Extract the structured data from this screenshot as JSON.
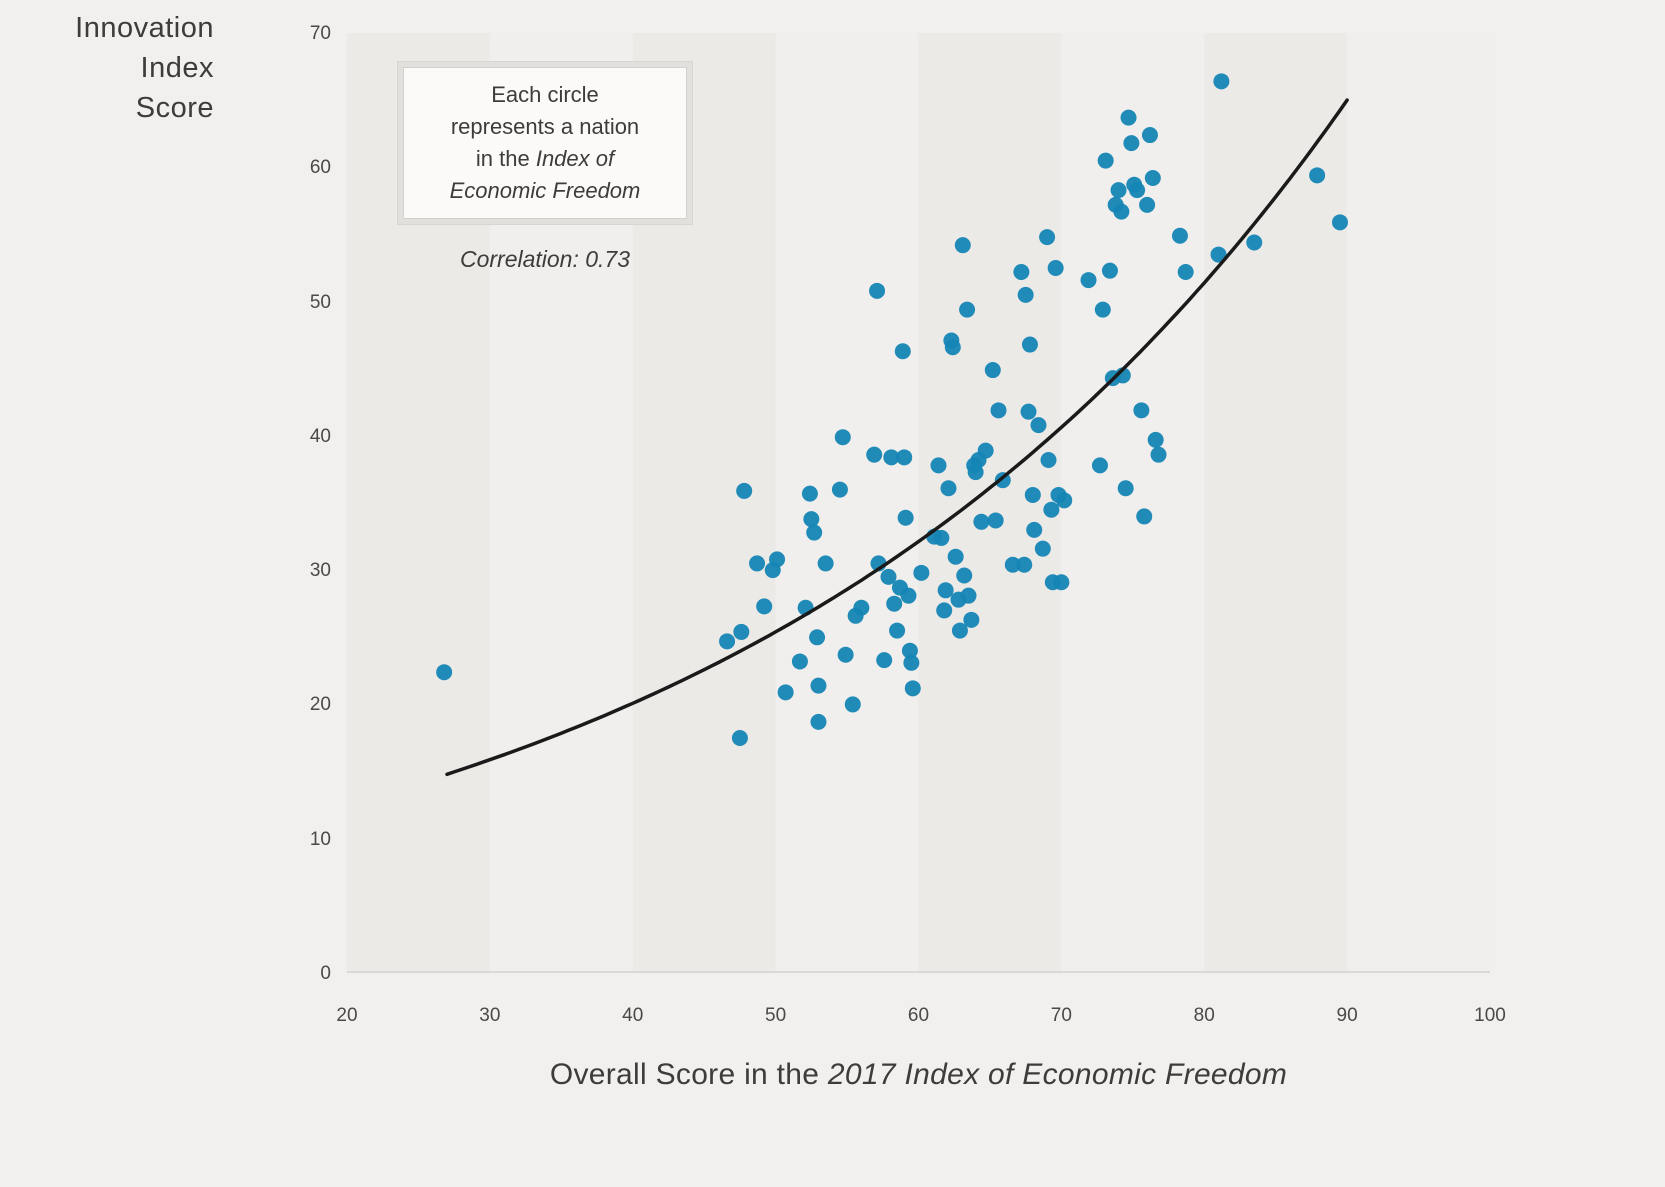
{
  "style": {
    "background": "#f2f0ee",
    "band_colors": [
      "#eceae7",
      "#f1efed"
    ],
    "point_color": "#1585b5",
    "trend_color": "#1a1a1a",
    "axis_line_color": "#dbd9d6",
    "text_color": "#3d3c3a"
  },
  "y_axis": {
    "title_lines": [
      "Innovation",
      "Index",
      "Score"
    ],
    "ticks": [
      0,
      10,
      20,
      30,
      40,
      50,
      60,
      70
    ]
  },
  "x_axis": {
    "title_prefix": "Overall Score in the ",
    "title_italic": "2017 Index of Economic Freedom",
    "ticks": [
      20,
      30,
      40,
      50,
      60,
      70,
      80,
      90,
      100
    ]
  },
  "annotation": {
    "box_lines": [
      {
        "text": "Each circle"
      },
      {
        "text": "represents a nation"
      },
      {
        "prefix": "in the ",
        "italic": "Index of"
      },
      {
        "italic": "Economic Freedom"
      }
    ],
    "correlation": "Correlation: 0.73"
  },
  "chart_data": {
    "type": "scatter",
    "title": "",
    "xlabel": "Overall Score in the 2017 Index of Economic Freedom",
    "ylabel": "Innovation Index Score",
    "xlim": [
      20,
      100
    ],
    "ylim": [
      0,
      70
    ],
    "x_ticks": [
      20,
      30,
      40,
      50,
      60,
      70,
      80,
      90,
      100
    ],
    "y_ticks": [
      0,
      10,
      20,
      30,
      40,
      50,
      60,
      70
    ],
    "grid": "vertical shaded bands every 10 x-units, no horizontal gridlines",
    "legend_position": "none",
    "annotation_text": "Each circle represents a nation in the Index of Economic Freedom",
    "correlation": 0.73,
    "trend": {
      "form": "exponential",
      "x_start": 27,
      "x_end": 90,
      "y_start": 14.8,
      "y_end": 65
    },
    "points": [
      [
        26.8,
        22.4
      ],
      [
        46.6,
        24.7
      ],
      [
        47.5,
        17.5
      ],
      [
        47.8,
        35.9
      ],
      [
        47.6,
        25.4
      ],
      [
        48.7,
        30.5
      ],
      [
        49.2,
        27.3
      ],
      [
        49.8,
        30.0
      ],
      [
        50.1,
        30.8
      ],
      [
        50.7,
        20.9
      ],
      [
        51.7,
        23.2
      ],
      [
        52.1,
        27.2
      ],
      [
        52.4,
        35.7
      ],
      [
        52.5,
        33.8
      ],
      [
        52.7,
        32.8
      ],
      [
        52.9,
        25.0
      ],
      [
        53.0,
        21.4
      ],
      [
        53.0,
        18.7
      ],
      [
        53.5,
        30.5
      ],
      [
        54.5,
        36.0
      ],
      [
        54.7,
        39.9
      ],
      [
        54.9,
        23.7
      ],
      [
        55.4,
        20.0
      ],
      [
        55.6,
        26.6
      ],
      [
        56.0,
        27.2
      ],
      [
        56.9,
        38.6
      ],
      [
        57.1,
        50.8
      ],
      [
        57.2,
        30.5
      ],
      [
        57.6,
        23.3
      ],
      [
        57.9,
        29.5
      ],
      [
        58.1,
        38.4
      ],
      [
        58.3,
        27.5
      ],
      [
        58.5,
        25.5
      ],
      [
        58.7,
        28.7
      ],
      [
        58.9,
        46.3
      ],
      [
        59.0,
        38.4
      ],
      [
        59.1,
        33.9
      ],
      [
        59.3,
        28.1
      ],
      [
        59.4,
        24.0
      ],
      [
        59.5,
        23.1
      ],
      [
        59.6,
        21.2
      ],
      [
        60.2,
        29.8
      ],
      [
        61.1,
        32.5
      ],
      [
        61.4,
        37.8
      ],
      [
        61.6,
        32.4
      ],
      [
        61.8,
        27.0
      ],
      [
        61.9,
        28.5
      ],
      [
        62.1,
        36.1
      ],
      [
        62.3,
        47.1
      ],
      [
        62.4,
        46.6
      ],
      [
        62.6,
        31.0
      ],
      [
        62.8,
        27.8
      ],
      [
        62.9,
        25.5
      ],
      [
        63.1,
        54.2
      ],
      [
        63.2,
        29.6
      ],
      [
        63.4,
        49.4
      ],
      [
        63.5,
        28.1
      ],
      [
        63.7,
        26.3
      ],
      [
        63.9,
        37.8
      ],
      [
        64.0,
        37.3
      ],
      [
        64.2,
        38.2
      ],
      [
        64.4,
        33.6
      ],
      [
        64.7,
        38.9
      ],
      [
        65.2,
        44.9
      ],
      [
        65.4,
        33.7
      ],
      [
        65.6,
        41.9
      ],
      [
        65.9,
        36.7
      ],
      [
        66.6,
        30.4
      ],
      [
        67.2,
        52.2
      ],
      [
        67.4,
        30.4
      ],
      [
        67.5,
        50.5
      ],
      [
        67.7,
        41.8
      ],
      [
        67.8,
        46.8
      ],
      [
        68.0,
        35.6
      ],
      [
        68.1,
        33.0
      ],
      [
        68.4,
        40.8
      ],
      [
        68.7,
        31.6
      ],
      [
        69.0,
        54.8
      ],
      [
        69.1,
        38.2
      ],
      [
        69.3,
        34.5
      ],
      [
        69.4,
        29.1
      ],
      [
        69.6,
        52.5
      ],
      [
        69.8,
        35.6
      ],
      [
        70.0,
        29.1
      ],
      [
        70.2,
        35.2
      ],
      [
        71.9,
        51.6
      ],
      [
        72.7,
        37.8
      ],
      [
        72.9,
        49.4
      ],
      [
        73.1,
        60.5
      ],
      [
        73.4,
        52.3
      ],
      [
        73.6,
        44.3
      ],
      [
        73.8,
        57.2
      ],
      [
        74.0,
        58.3
      ],
      [
        74.2,
        56.7
      ],
      [
        74.3,
        44.5
      ],
      [
        74.5,
        36.1
      ],
      [
        74.7,
        63.7
      ],
      [
        74.9,
        61.8
      ],
      [
        75.1,
        58.7
      ],
      [
        75.3,
        58.3
      ],
      [
        75.6,
        41.9
      ],
      [
        75.8,
        34.0
      ],
      [
        76.0,
        57.2
      ],
      [
        76.2,
        62.4
      ],
      [
        76.4,
        59.2
      ],
      [
        76.6,
        39.7
      ],
      [
        76.8,
        38.6
      ],
      [
        78.3,
        54.9
      ],
      [
        78.7,
        52.2
      ],
      [
        81.0,
        53.5
      ],
      [
        81.2,
        66.4
      ],
      [
        83.5,
        54.4
      ],
      [
        87.9,
        59.4
      ],
      [
        89.5,
        55.9
      ]
    ]
  }
}
